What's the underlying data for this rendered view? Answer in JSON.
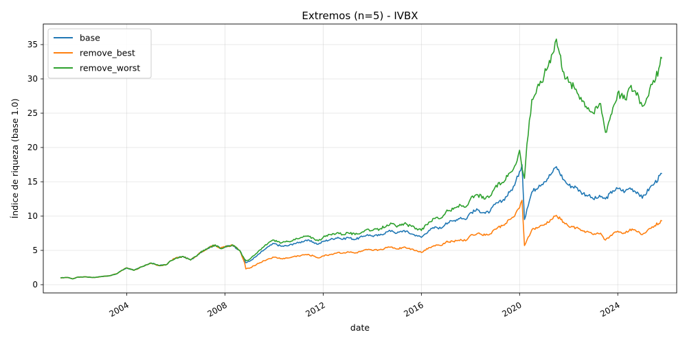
{
  "chart_data": {
    "type": "line",
    "title": "Extremos (n=5) - IVBX",
    "xlabel": "date",
    "ylabel": "Índice de riqueza (base 1.0)",
    "xlim": [
      2000.6,
      2026.4
    ],
    "ylim": [
      -1.2,
      38
    ],
    "x_ticks": [
      2004,
      2008,
      2012,
      2016,
      2020,
      2024
    ],
    "x_tick_labels": [
      "2004",
      "2008",
      "2012",
      "2016",
      "2020",
      "2024"
    ],
    "y_ticks": [
      0,
      5,
      10,
      15,
      20,
      25,
      30,
      35
    ],
    "y_tick_labels": [
      "0",
      "5",
      "10",
      "15",
      "20",
      "25",
      "30",
      "35"
    ],
    "grid": true,
    "legend_position": "top-left",
    "x": [
      2001.3,
      2001.6,
      2001.8,
      2002.0,
      2002.3,
      2002.6,
      2002.8,
      2003.0,
      2003.3,
      2003.6,
      2003.8,
      2004.0,
      2004.3,
      2004.6,
      2004.8,
      2005.0,
      2005.3,
      2005.6,
      2005.8,
      2006.0,
      2006.3,
      2006.6,
      2006.8,
      2007.0,
      2007.3,
      2007.6,
      2007.8,
      2008.0,
      2008.3,
      2008.6,
      2008.8,
      2008.85,
      2009.0,
      2009.3,
      2009.6,
      2009.8,
      2010.0,
      2010.3,
      2010.6,
      2010.8,
      2011.0,
      2011.3,
      2011.6,
      2011.8,
      2012.0,
      2012.3,
      2012.6,
      2012.8,
      2013.0,
      2013.3,
      2013.6,
      2013.8,
      2014.0,
      2014.3,
      2014.6,
      2014.8,
      2015.0,
      2015.3,
      2015.6,
      2015.8,
      2016.0,
      2016.3,
      2016.6,
      2016.8,
      2017.0,
      2017.3,
      2017.6,
      2017.8,
      2018.0,
      2018.3,
      2018.6,
      2018.8,
      2019.0,
      2019.3,
      2019.6,
      2019.8,
      2020.0,
      2020.1,
      2020.2,
      2020.3,
      2020.5,
      2020.8,
      2021.0,
      2021.3,
      2021.5,
      2021.8,
      2022.0,
      2022.3,
      2022.5,
      2022.8,
      2023.0,
      2023.3,
      2023.5,
      2023.8,
      2024.0,
      2024.3,
      2024.5,
      2024.8,
      2025.0,
      2025.3,
      2025.5,
      2025.8
    ],
    "series": [
      {
        "name": "base",
        "color": "#1f77b4",
        "values": [
          1.0,
          1.05,
          0.85,
          1.1,
          1.15,
          1.05,
          1.1,
          1.2,
          1.3,
          1.6,
          2.1,
          2.45,
          2.1,
          2.6,
          2.9,
          3.15,
          2.8,
          2.9,
          3.5,
          3.9,
          4.1,
          3.6,
          4.1,
          4.7,
          5.3,
          5.8,
          5.3,
          5.5,
          5.8,
          5.0,
          3.5,
          3.2,
          3.4,
          4.2,
          5.1,
          5.6,
          6.0,
          5.6,
          5.7,
          6.0,
          6.1,
          6.5,
          6.2,
          5.9,
          6.3,
          6.6,
          6.9,
          6.6,
          6.9,
          6.6,
          7.0,
          7.3,
          7.1,
          7.2,
          7.7,
          7.9,
          7.5,
          7.9,
          7.4,
          7.2,
          6.9,
          7.9,
          8.4,
          8.2,
          9.0,
          9.3,
          9.8,
          9.5,
          10.5,
          10.9,
          10.4,
          10.7,
          11.7,
          12.2,
          13.5,
          14.5,
          16.5,
          17.5,
          9.5,
          11.0,
          13.5,
          14.5,
          15.0,
          16.2,
          17.2,
          15.3,
          14.5,
          14.2,
          13.5,
          13.0,
          12.5,
          12.8,
          12.5,
          13.7,
          14.0,
          13.6,
          14.1,
          13.5,
          12.6,
          14.1,
          14.8,
          16.2
        ]
      },
      {
        "name": "remove_best",
        "color": "#ff7f0e",
        "values": [
          1.0,
          1.05,
          0.85,
          1.1,
          1.15,
          1.05,
          1.1,
          1.2,
          1.3,
          1.6,
          2.1,
          2.45,
          2.1,
          2.6,
          2.9,
          3.15,
          2.8,
          2.9,
          3.5,
          3.9,
          4.1,
          3.6,
          4.1,
          4.7,
          5.3,
          5.8,
          5.3,
          5.5,
          5.8,
          5.0,
          3.2,
          2.3,
          2.4,
          3.0,
          3.5,
          3.8,
          4.0,
          3.8,
          3.9,
          4.1,
          4.2,
          4.4,
          4.2,
          3.9,
          4.2,
          4.4,
          4.7,
          4.6,
          4.8,
          4.6,
          4.9,
          5.1,
          5.0,
          5.1,
          5.4,
          5.5,
          5.2,
          5.5,
          5.2,
          5.0,
          4.7,
          5.4,
          5.8,
          5.7,
          6.2,
          6.3,
          6.6,
          6.4,
          7.2,
          7.5,
          7.2,
          7.4,
          8.1,
          8.6,
          9.5,
          10.0,
          11.2,
          12.3,
          5.7,
          6.5,
          8.0,
          8.4,
          8.7,
          9.5,
          10.1,
          9.1,
          8.5,
          8.3,
          7.9,
          7.7,
          7.3,
          7.5,
          6.5,
          7.4,
          7.8,
          7.5,
          8.1,
          7.7,
          7.3,
          8.2,
          8.6,
          9.3
        ]
      },
      {
        "name": "remove_worst",
        "color": "#2ca02c",
        "values": [
          1.0,
          1.05,
          0.85,
          1.1,
          1.15,
          1.05,
          1.1,
          1.2,
          1.3,
          1.6,
          2.1,
          2.45,
          2.1,
          2.6,
          2.9,
          3.15,
          2.8,
          2.9,
          3.5,
          3.9,
          4.1,
          3.6,
          4.1,
          4.7,
          5.3,
          5.8,
          5.3,
          5.5,
          5.8,
          5.0,
          3.7,
          3.5,
          3.7,
          4.6,
          5.6,
          6.2,
          6.5,
          6.1,
          6.3,
          6.6,
          6.7,
          7.1,
          6.8,
          6.4,
          6.9,
          7.3,
          7.6,
          7.3,
          7.6,
          7.3,
          7.7,
          8.1,
          7.9,
          8.1,
          8.7,
          8.9,
          8.4,
          8.9,
          8.5,
          8.2,
          7.9,
          9.1,
          9.8,
          9.7,
          10.6,
          11.0,
          11.6,
          11.3,
          12.5,
          13.1,
          12.5,
          12.9,
          14.2,
          14.9,
          16.3,
          17.3,
          19.6,
          17.0,
          15.5,
          20.5,
          27.0,
          29.0,
          30.5,
          33.5,
          35.8,
          31.0,
          29.5,
          28.5,
          27.3,
          25.8,
          25.0,
          26.4,
          22.2,
          25.8,
          28.0,
          27.0,
          28.8,
          28.0,
          26.0,
          28.5,
          29.5,
          33.0
        ]
      }
    ]
  }
}
